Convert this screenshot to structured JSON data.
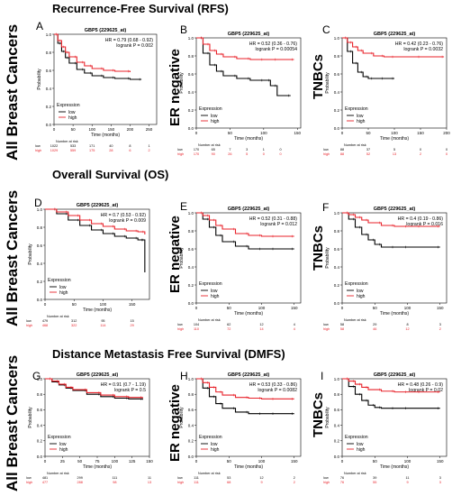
{
  "sections": [
    {
      "title": "Recurrence-Free Survival (RFS)"
    },
    {
      "title": "Overall Survival (OS)"
    },
    {
      "title": "Distance Metastasis Free Survival (DMFS)"
    }
  ],
  "row_labels": [
    "All Breast Cancers",
    "All Breast Cancers",
    "All Breast Cancers"
  ],
  "col_labels": [
    "ER negative",
    "TNBCs"
  ],
  "common": {
    "ylabel": "Probability",
    "xlabel": "Time (months)",
    "legend_title": "Expression",
    "legend_low": "low",
    "legend_high": "high",
    "risk_title": "Number at risk",
    "risk_low": "low",
    "risk_high": "high",
    "colors": {
      "low": "#000000",
      "high": "#e8222a"
    }
  },
  "chart_data": [
    {
      "letter": "A",
      "type": "line",
      "title": "GBP5 (229625_at)",
      "hr": "HR = 0.79 (0.68 - 0.92)",
      "logrank": "logrank P = 0.002",
      "xlim": [
        0,
        270
      ],
      "xticks": [
        0,
        50,
        100,
        150,
        200,
        250
      ],
      "ylim": [
        0,
        1
      ],
      "yticks": [
        0,
        0.2,
        0.4,
        0.6,
        0.8,
        1.0
      ],
      "series": [
        {
          "name": "low",
          "x": [
            0,
            10,
            20,
            30,
            40,
            60,
            80,
            100,
            130,
            160,
            200,
            230
          ],
          "y": [
            1,
            0.9,
            0.81,
            0.74,
            0.68,
            0.61,
            0.57,
            0.54,
            0.52,
            0.51,
            0.5,
            0.5
          ]
        },
        {
          "name": "high",
          "x": [
            0,
            10,
            20,
            30,
            40,
            60,
            80,
            100,
            130,
            160,
            200
          ],
          "y": [
            1,
            0.93,
            0.86,
            0.8,
            0.75,
            0.69,
            0.65,
            0.62,
            0.6,
            0.59,
            0.58
          ]
        }
      ],
      "risk_x": [
        0,
        50,
        100,
        150,
        200,
        250
      ],
      "risk_low": [
        "1022",
        "533",
        "171",
        "40",
        "8",
        "1"
      ],
      "risk_high": [
        "1029",
        "559",
        "175",
        "28",
        "6",
        "2"
      ]
    },
    {
      "letter": "B",
      "type": "line",
      "title": "GBP5 (229625_at)",
      "hr": "HR = 0.52 (0.36 - 0.76)",
      "logrank": "logrank P = 0.00054",
      "xlim": [
        0,
        155
      ],
      "xticks": [
        0,
        50,
        100,
        150
      ],
      "ylim": [
        0,
        1
      ],
      "yticks": [
        0,
        0.2,
        0.4,
        0.6,
        0.8,
        1.0
      ],
      "series": [
        {
          "name": "low",
          "x": [
            0,
            10,
            20,
            30,
            40,
            60,
            80,
            100,
            110,
            120,
            140
          ],
          "y": [
            1,
            0.83,
            0.7,
            0.63,
            0.58,
            0.55,
            0.53,
            0.53,
            0.47,
            0.36,
            0.36
          ]
        },
        {
          "name": "high",
          "x": [
            0,
            10,
            20,
            30,
            40,
            60,
            80,
            100,
            120,
            145
          ],
          "y": [
            1,
            0.93,
            0.86,
            0.82,
            0.79,
            0.77,
            0.76,
            0.76,
            0.76,
            0.76
          ]
        }
      ],
      "risk_x": [
        0,
        25,
        50,
        75,
        100,
        125
      ],
      "risk_low": [
        "170",
        "65",
        "7",
        "3",
        "1",
        "0"
      ],
      "risk_high": [
        "170",
        "90",
        "26",
        "5",
        "0",
        "0"
      ]
    },
    {
      "letter": "C",
      "type": "line",
      "title": "GBP5 (229625_at)",
      "hr": "HR = 0.42 (0.23 - 0.76)",
      "logrank": "logrank P = 0.0032",
      "xlim": [
        0,
        200
      ],
      "xticks": [
        0,
        50,
        100,
        150,
        200
      ],
      "ylim": [
        0,
        1
      ],
      "yticks": [
        0,
        0.2,
        0.4,
        0.6,
        0.8,
        1.0
      ],
      "series": [
        {
          "name": "low",
          "x": [
            0,
            10,
            20,
            30,
            40,
            50,
            60,
            80,
            100
          ],
          "y": [
            1,
            0.85,
            0.72,
            0.62,
            0.57,
            0.55,
            0.55,
            0.55,
            0.55
          ]
        },
        {
          "name": "high",
          "x": [
            0,
            10,
            20,
            30,
            40,
            60,
            80,
            100,
            150,
            195
          ],
          "y": [
            1,
            0.95,
            0.9,
            0.86,
            0.83,
            0.8,
            0.79,
            0.79,
            0.79,
            0.79
          ]
        }
      ],
      "risk_x": [
        0,
        50,
        100,
        150,
        200
      ],
      "risk_low": [
        "88",
        "37",
        "5",
        "0",
        "0"
      ],
      "risk_high": [
        "88",
        "52",
        "13",
        "2",
        "0"
      ]
    },
    {
      "letter": "D",
      "type": "line",
      "title": "GBP5 (229625_at)",
      "hr": "HR = 0.7 (0.53 - 0.92)",
      "logrank": "logrank P = 0.009",
      "xlim": [
        0,
        180
      ],
      "xticks": [
        0,
        50,
        100,
        150
      ],
      "ylim": [
        0,
        1
      ],
      "yticks": [
        0,
        0.2,
        0.4,
        0.6,
        0.8,
        1.0
      ],
      "series": [
        {
          "name": "low",
          "x": [
            0,
            20,
            40,
            60,
            80,
            100,
            120,
            140,
            160,
            170,
            172
          ],
          "y": [
            1,
            0.95,
            0.88,
            0.82,
            0.77,
            0.73,
            0.7,
            0.68,
            0.66,
            0.66,
            0.3
          ]
        },
        {
          "name": "high",
          "x": [
            0,
            20,
            40,
            60,
            80,
            100,
            120,
            140,
            160,
            172
          ],
          "y": [
            1,
            0.97,
            0.93,
            0.88,
            0.84,
            0.81,
            0.78,
            0.76,
            0.75,
            0.72
          ]
        }
      ],
      "risk_x": [
        0,
        50,
        100,
        150
      ],
      "risk_low": [
        "479",
        "312",
        "95",
        "15"
      ],
      "risk_high": [
        "468",
        "322",
        "114",
        "29"
      ]
    },
    {
      "letter": "E",
      "type": "line",
      "title": "GBP5 (229625_at)",
      "hr": "HR = 0.52 (0.31 - 0.88)",
      "logrank": "logrank P = 0.012",
      "xlim": [
        0,
        160
      ],
      "xticks": [
        0,
        50,
        100,
        150
      ],
      "ylim": [
        0,
        1
      ],
      "yticks": [
        0,
        0.2,
        0.4,
        0.6,
        0.8,
        1.0
      ],
      "series": [
        {
          "name": "low",
          "x": [
            0,
            10,
            20,
            30,
            40,
            60,
            80,
            100,
            120,
            150
          ],
          "y": [
            1,
            0.93,
            0.84,
            0.75,
            0.68,
            0.63,
            0.6,
            0.6,
            0.6,
            0.6
          ]
        },
        {
          "name": "high",
          "x": [
            0,
            10,
            20,
            30,
            40,
            60,
            80,
            100,
            120,
            150
          ],
          "y": [
            1,
            0.97,
            0.92,
            0.86,
            0.82,
            0.77,
            0.75,
            0.74,
            0.74,
            0.74
          ]
        }
      ],
      "risk_x": [
        0,
        50,
        100,
        150
      ],
      "risk_low": [
        "104",
        "62",
        "12",
        "4"
      ],
      "risk_high": [
        "110",
        "72",
        "14",
        "4"
      ]
    },
    {
      "letter": "F",
      "type": "line",
      "title": "GBP5 (229625_at)",
      "hr": "HR = 0.4 (0.19 - 0.86)",
      "logrank": "logrank P = 0.016",
      "xlim": [
        0,
        160
      ],
      "xticks": [
        0,
        50,
        100,
        150
      ],
      "ylim": [
        0,
        1
      ],
      "yticks": [
        0,
        0.2,
        0.4,
        0.6,
        0.8,
        1.0
      ],
      "series": [
        {
          "name": "low",
          "x": [
            0,
            10,
            20,
            30,
            40,
            50,
            60,
            80,
            100,
            150
          ],
          "y": [
            1,
            0.93,
            0.84,
            0.76,
            0.7,
            0.65,
            0.62,
            0.62,
            0.62,
            0.62
          ]
        },
        {
          "name": "high",
          "x": [
            0,
            10,
            20,
            30,
            40,
            60,
            80,
            100,
            120,
            150
          ],
          "y": [
            1,
            0.98,
            0.95,
            0.92,
            0.89,
            0.86,
            0.85,
            0.85,
            0.85,
            0.85
          ]
        }
      ],
      "risk_x": [
        0,
        50,
        100,
        150
      ],
      "risk_low": [
        "58",
        "29",
        "8",
        "3"
      ],
      "risk_high": [
        "58",
        "46",
        "12",
        "2"
      ]
    },
    {
      "letter": "G",
      "type": "line",
      "title": "GBP5 (229625_at)",
      "hr": "HR = 0.91 (0.7 - 1.19)",
      "logrank": "logrank P = 0.5",
      "xlim": [
        0,
        150
      ],
      "xticks": [
        0,
        25,
        50,
        75,
        100,
        125,
        150
      ],
      "ylim": [
        0,
        1
      ],
      "yticks": [
        0,
        0.2,
        0.4,
        0.6,
        0.8,
        1.0
      ],
      "series": [
        {
          "name": "low",
          "x": [
            0,
            10,
            20,
            30,
            40,
            60,
            80,
            100,
            120,
            140
          ],
          "y": [
            1,
            0.96,
            0.92,
            0.88,
            0.85,
            0.8,
            0.77,
            0.75,
            0.74,
            0.73
          ]
        },
        {
          "name": "high",
          "x": [
            0,
            10,
            20,
            30,
            40,
            60,
            80,
            100,
            120,
            140
          ],
          "y": [
            1,
            0.97,
            0.93,
            0.89,
            0.86,
            0.82,
            0.79,
            0.77,
            0.76,
            0.75
          ]
        }
      ],
      "risk_x": [
        0,
        50,
        100,
        150
      ],
      "risk_low": [
        "481",
        "299",
        "111",
        "11"
      ],
      "risk_high": [
        "477",
        "288",
        "98",
        "13"
      ]
    },
    {
      "letter": "H",
      "type": "line",
      "title": "GBP5 (229625_at)",
      "hr": "HR = 0.53 (0.33 - 0.86)",
      "logrank": "logrank P = 0.0082",
      "xlim": [
        0,
        160
      ],
      "xticks": [
        0,
        50,
        100,
        150
      ],
      "ylim": [
        0,
        1
      ],
      "yticks": [
        0,
        0.2,
        0.4,
        0.6,
        0.8,
        1.0
      ],
      "series": [
        {
          "name": "low",
          "x": [
            0,
            10,
            20,
            30,
            40,
            60,
            80,
            100,
            120,
            150
          ],
          "y": [
            1,
            0.88,
            0.77,
            0.68,
            0.62,
            0.57,
            0.55,
            0.55,
            0.55,
            0.55
          ]
        },
        {
          "name": "high",
          "x": [
            0,
            10,
            20,
            30,
            40,
            60,
            80,
            100,
            120,
            150
          ],
          "y": [
            1,
            0.95,
            0.89,
            0.83,
            0.79,
            0.76,
            0.75,
            0.74,
            0.74,
            0.74
          ]
        }
      ],
      "risk_x": [
        0,
        50,
        100,
        150
      ],
      "risk_low": [
        "111",
        "53",
        "12",
        "2"
      ],
      "risk_high": [
        "111",
        "68",
        "9",
        "2"
      ]
    },
    {
      "letter": "I",
      "type": "line",
      "title": "GBP5 (229625_at)",
      "hr": "HR = 0.48 (0.26 - 0.9)",
      "logrank": "logrank P = 0.02",
      "xlim": [
        0,
        160
      ],
      "xticks": [
        0,
        50,
        100,
        150
      ],
      "ylim": [
        0,
        1
      ],
      "yticks": [
        0,
        0.2,
        0.4,
        0.6,
        0.8,
        1.0
      ],
      "series": [
        {
          "name": "low",
          "x": [
            0,
            10,
            20,
            30,
            40,
            50,
            60,
            80,
            100,
            150
          ],
          "y": [
            1,
            0.9,
            0.8,
            0.72,
            0.66,
            0.63,
            0.62,
            0.62,
            0.62,
            0.62
          ]
        },
        {
          "name": "high",
          "x": [
            0,
            10,
            20,
            30,
            40,
            60,
            80,
            100,
            120,
            150
          ],
          "y": [
            1,
            0.97,
            0.93,
            0.89,
            0.86,
            0.84,
            0.83,
            0.83,
            0.83,
            0.83
          ]
        }
      ],
      "risk_x": [
        0,
        50,
        100,
        150
      ],
      "risk_low": [
        "76",
        "39",
        "11",
        "3"
      ],
      "risk_high": [
        "76",
        "55",
        "9",
        "3"
      ]
    }
  ]
}
